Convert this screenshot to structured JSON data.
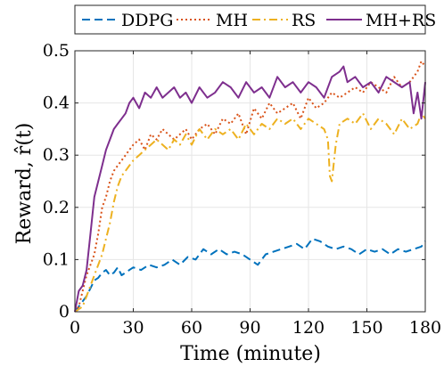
{
  "chart_data": {
    "type": "line",
    "title": "",
    "xlabel": "Time (minute)",
    "ylabel": "Reward, r̂(t)",
    "xlim": [
      0,
      180
    ],
    "ylim": [
      0,
      0.5
    ],
    "xticks": [
      0,
      30,
      60,
      90,
      120,
      150,
      180
    ],
    "xtick_labels": [
      "0",
      "30",
      "60",
      "90",
      "120",
      "150",
      "180"
    ],
    "yticks": [
      0,
      0.1,
      0.2,
      0.3,
      0.4,
      0.5
    ],
    "ytick_labels": [
      "0",
      "0.1",
      "0.2",
      "0.3",
      "0.4",
      "0.5"
    ],
    "grid": true,
    "legend_position": "top",
    "series": [
      {
        "name": "DDPG",
        "color": "#0072BD",
        "dash": "dashed",
        "x": [
          0,
          2,
          4,
          6,
          8,
          10,
          12,
          14,
          16,
          18,
          20,
          22,
          24,
          26,
          28,
          30,
          34,
          38,
          42,
          46,
          50,
          54,
          58,
          62,
          66,
          70,
          74,
          78,
          82,
          86,
          90,
          94,
          98,
          102,
          106,
          110,
          114,
          118,
          122,
          126,
          130,
          134,
          138,
          142,
          146,
          150,
          154,
          158,
          162,
          166,
          170,
          174,
          178,
          180
        ],
        "y": [
          0.0,
          0.01,
          0.02,
          0.03,
          0.045,
          0.06,
          0.065,
          0.075,
          0.08,
          0.07,
          0.075,
          0.085,
          0.07,
          0.075,
          0.08,
          0.085,
          0.08,
          0.09,
          0.085,
          0.09,
          0.1,
          0.09,
          0.105,
          0.1,
          0.12,
          0.11,
          0.12,
          0.11,
          0.115,
          0.11,
          0.1,
          0.09,
          0.11,
          0.115,
          0.12,
          0.125,
          0.13,
          0.12,
          0.14,
          0.135,
          0.125,
          0.12,
          0.125,
          0.12,
          0.11,
          0.12,
          0.115,
          0.12,
          0.11,
          0.12,
          0.115,
          0.12,
          0.125,
          0.135
        ]
      },
      {
        "name": "MH",
        "color": "#D95319",
        "dash": "dotted",
        "x": [
          0,
          2,
          4,
          6,
          8,
          10,
          12,
          14,
          16,
          18,
          20,
          22,
          24,
          26,
          28,
          30,
          33,
          36,
          39,
          42,
          45,
          48,
          51,
          54,
          57,
          60,
          64,
          68,
          72,
          76,
          80,
          84,
          88,
          92,
          96,
          100,
          104,
          108,
          112,
          116,
          120,
          124,
          128,
          132,
          136,
          140,
          144,
          148,
          152,
          156,
          160,
          164,
          168,
          172,
          176,
          178,
          180
        ],
        "y": [
          0.0,
          0.01,
          0.04,
          0.07,
          0.09,
          0.11,
          0.15,
          0.2,
          0.22,
          0.25,
          0.27,
          0.28,
          0.29,
          0.3,
          0.31,
          0.32,
          0.33,
          0.31,
          0.34,
          0.33,
          0.35,
          0.34,
          0.33,
          0.34,
          0.35,
          0.33,
          0.35,
          0.36,
          0.34,
          0.37,
          0.36,
          0.38,
          0.34,
          0.39,
          0.37,
          0.4,
          0.38,
          0.39,
          0.4,
          0.37,
          0.41,
          0.39,
          0.4,
          0.42,
          0.41,
          0.42,
          0.43,
          0.42,
          0.44,
          0.43,
          0.42,
          0.45,
          0.43,
          0.44,
          0.46,
          0.48,
          0.47
        ]
      },
      {
        "name": "RS",
        "color": "#EDB120",
        "dash": "dashdot",
        "x": [
          0,
          2,
          4,
          6,
          8,
          10,
          12,
          14,
          16,
          18,
          20,
          22,
          24,
          26,
          28,
          30,
          33,
          36,
          39,
          42,
          45,
          48,
          51,
          54,
          57,
          60,
          64,
          68,
          72,
          76,
          80,
          84,
          88,
          92,
          96,
          100,
          104,
          108,
          112,
          116,
          120,
          124,
          128,
          130,
          131,
          132,
          134,
          136,
          140,
          144,
          148,
          152,
          156,
          160,
          164,
          168,
          172,
          176,
          178,
          180
        ],
        "y": [
          0.0,
          0.005,
          0.01,
          0.03,
          0.05,
          0.07,
          0.09,
          0.11,
          0.14,
          0.17,
          0.21,
          0.24,
          0.26,
          0.27,
          0.28,
          0.29,
          0.3,
          0.31,
          0.32,
          0.33,
          0.32,
          0.31,
          0.33,
          0.32,
          0.34,
          0.32,
          0.35,
          0.33,
          0.35,
          0.34,
          0.35,
          0.33,
          0.36,
          0.34,
          0.36,
          0.35,
          0.37,
          0.36,
          0.37,
          0.35,
          0.37,
          0.36,
          0.35,
          0.33,
          0.26,
          0.25,
          0.32,
          0.36,
          0.37,
          0.36,
          0.38,
          0.35,
          0.37,
          0.36,
          0.34,
          0.37,
          0.35,
          0.36,
          0.38,
          0.37
        ]
      },
      {
        "name": "MH+RS",
        "color": "#7E2F8E",
        "dash": "solid",
        "x": [
          0,
          2,
          4,
          6,
          8,
          10,
          12,
          14,
          16,
          18,
          20,
          22,
          24,
          26,
          28,
          30,
          33,
          36,
          39,
          42,
          45,
          48,
          51,
          54,
          57,
          60,
          64,
          68,
          72,
          76,
          80,
          84,
          88,
          92,
          96,
          100,
          104,
          108,
          112,
          116,
          120,
          124,
          128,
          132,
          136,
          138,
          140,
          144,
          148,
          152,
          156,
          160,
          164,
          168,
          172,
          174,
          176,
          178,
          180
        ],
        "y": [
          0.0,
          0.04,
          0.05,
          0.08,
          0.15,
          0.22,
          0.25,
          0.28,
          0.31,
          0.33,
          0.35,
          0.36,
          0.37,
          0.38,
          0.4,
          0.41,
          0.39,
          0.42,
          0.41,
          0.43,
          0.41,
          0.42,
          0.43,
          0.41,
          0.42,
          0.4,
          0.43,
          0.41,
          0.42,
          0.44,
          0.43,
          0.41,
          0.44,
          0.42,
          0.43,
          0.41,
          0.45,
          0.43,
          0.44,
          0.42,
          0.44,
          0.43,
          0.41,
          0.45,
          0.46,
          0.47,
          0.44,
          0.45,
          0.43,
          0.44,
          0.42,
          0.45,
          0.44,
          0.43,
          0.44,
          0.38,
          0.42,
          0.37,
          0.44
        ]
      }
    ]
  }
}
